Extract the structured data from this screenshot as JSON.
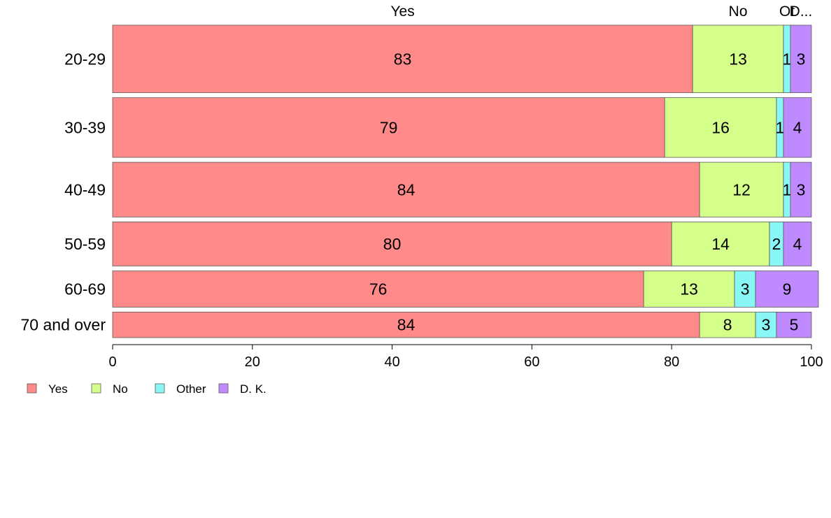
{
  "chart_data": {
    "type": "bar",
    "orientation": "horizontal",
    "stacked": true,
    "categories": [
      "20-29",
      "30-39",
      "40-49",
      "50-59",
      "60-69",
      "70 and over"
    ],
    "series": [
      {
        "name": "Yes",
        "color": "#ff8a8a",
        "values": [
          83,
          79,
          84,
          80,
          76,
          84
        ],
        "labels": [
          "83",
          "79",
          "84",
          "80",
          "76",
          "84"
        ]
      },
      {
        "name": "No",
        "color": "#d4ff8a",
        "values": [
          13,
          16,
          12,
          14,
          13,
          8
        ],
        "labels": [
          "13",
          "16",
          "12",
          "14",
          "13",
          "8"
        ]
      },
      {
        "name": "Other",
        "color": "#8af7f7",
        "values": [
          1,
          1,
          1,
          2,
          3,
          3
        ],
        "labels": [
          "1",
          "1",
          "1",
          "2",
          "3",
          "3"
        ]
      },
      {
        "name": "D. K.",
        "color": "#c08aff",
        "values": [
          3,
          4,
          3,
          4,
          9,
          5
        ],
        "labels": [
          "3",
          "4",
          "3",
          "4",
          "9",
          "5"
        ]
      }
    ],
    "top_labels": [
      "Yes",
      "No",
      "Ot",
      "D..."
    ],
    "xlim": [
      0,
      100
    ],
    "xticks": [
      "0",
      "20",
      "40",
      "60",
      "80",
      "100"
    ],
    "bar_weights": [
      95,
      84,
      77,
      62,
      51,
      36
    ],
    "legend": {
      "position": "bottom-left",
      "entries": [
        "Yes",
        "No",
        "Other",
        "D. K."
      ]
    },
    "grid": false
  }
}
